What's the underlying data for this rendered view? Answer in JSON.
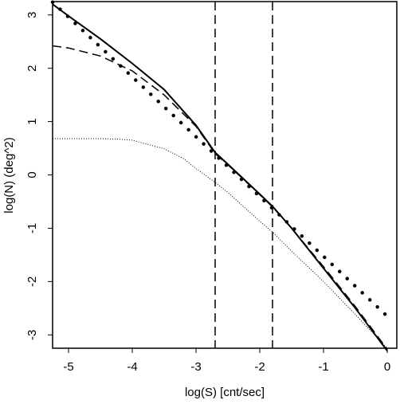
{
  "chart_data": {
    "type": "line",
    "xlabel": "log(S) [cnt/sec]",
    "ylabel": "log(N) (deg^2)",
    "xlim": [
      -5.25,
      0.15
    ],
    "ylim": [
      -3.25,
      3.25
    ],
    "grid": false,
    "x_ticks": [
      "-5",
      "-4",
      "-3",
      "-2",
      "-1",
      "0"
    ],
    "x_tick_values": [
      -5,
      -4,
      -3,
      -2,
      -1,
      0
    ],
    "y_ticks": [
      "-3",
      "-2",
      "-1",
      "0",
      "1",
      "2",
      "3"
    ],
    "y_tick_values": [
      -3,
      -2,
      -1,
      0,
      1,
      2,
      3
    ],
    "series": [
      {
        "style": "solid",
        "x": [
          -5.25,
          -5.0,
          -4.5,
          -4.0,
          -3.5,
          -3.0,
          -2.7,
          -2.5,
          -2.0,
          -1.8,
          -1.5,
          -1.0,
          -0.5,
          0.0
        ],
        "y": [
          3.2,
          2.98,
          2.55,
          2.09,
          1.6,
          0.93,
          0.42,
          0.2,
          -0.36,
          -0.59,
          -1.0,
          -1.75,
          -2.5,
          -3.3
        ]
      },
      {
        "style": "dashed",
        "x": [
          -5.25,
          -5.0,
          -4.5,
          -4.0,
          -3.5,
          -3.0,
          -2.7,
          -2.5,
          -2.0,
          -1.8,
          -1.5,
          -1.0,
          -0.5,
          0.0
        ],
        "y": [
          2.42,
          2.38,
          2.23,
          1.95,
          1.5,
          0.91,
          0.4,
          0.19,
          -0.37,
          -0.6,
          -1.0,
          -1.72,
          -2.47,
          -3.27
        ]
      },
      {
        "style": "dotted-thin",
        "x": [
          -5.25,
          -5.0,
          -4.5,
          -4.2,
          -4.0,
          -3.5,
          -3.2,
          -3.0,
          -2.7,
          -2.5,
          -2.0,
          -1.8,
          -1.5,
          -1.0,
          -0.5,
          0.0
        ],
        "y": [
          0.68,
          0.68,
          0.68,
          0.67,
          0.65,
          0.49,
          0.31,
          0.12,
          -0.14,
          -0.33,
          -0.87,
          -1.07,
          -1.43,
          -2.0,
          -2.62,
          -3.25
        ]
      },
      {
        "style": "dotted-heavy",
        "x": [
          -5.25,
          0.0
        ],
        "y": [
          3.24,
          -2.65
        ]
      }
    ],
    "vertical_lines": [
      {
        "x": -2.7,
        "style": "dashed"
      },
      {
        "x": -1.8,
        "style": "dashed"
      }
    ]
  }
}
